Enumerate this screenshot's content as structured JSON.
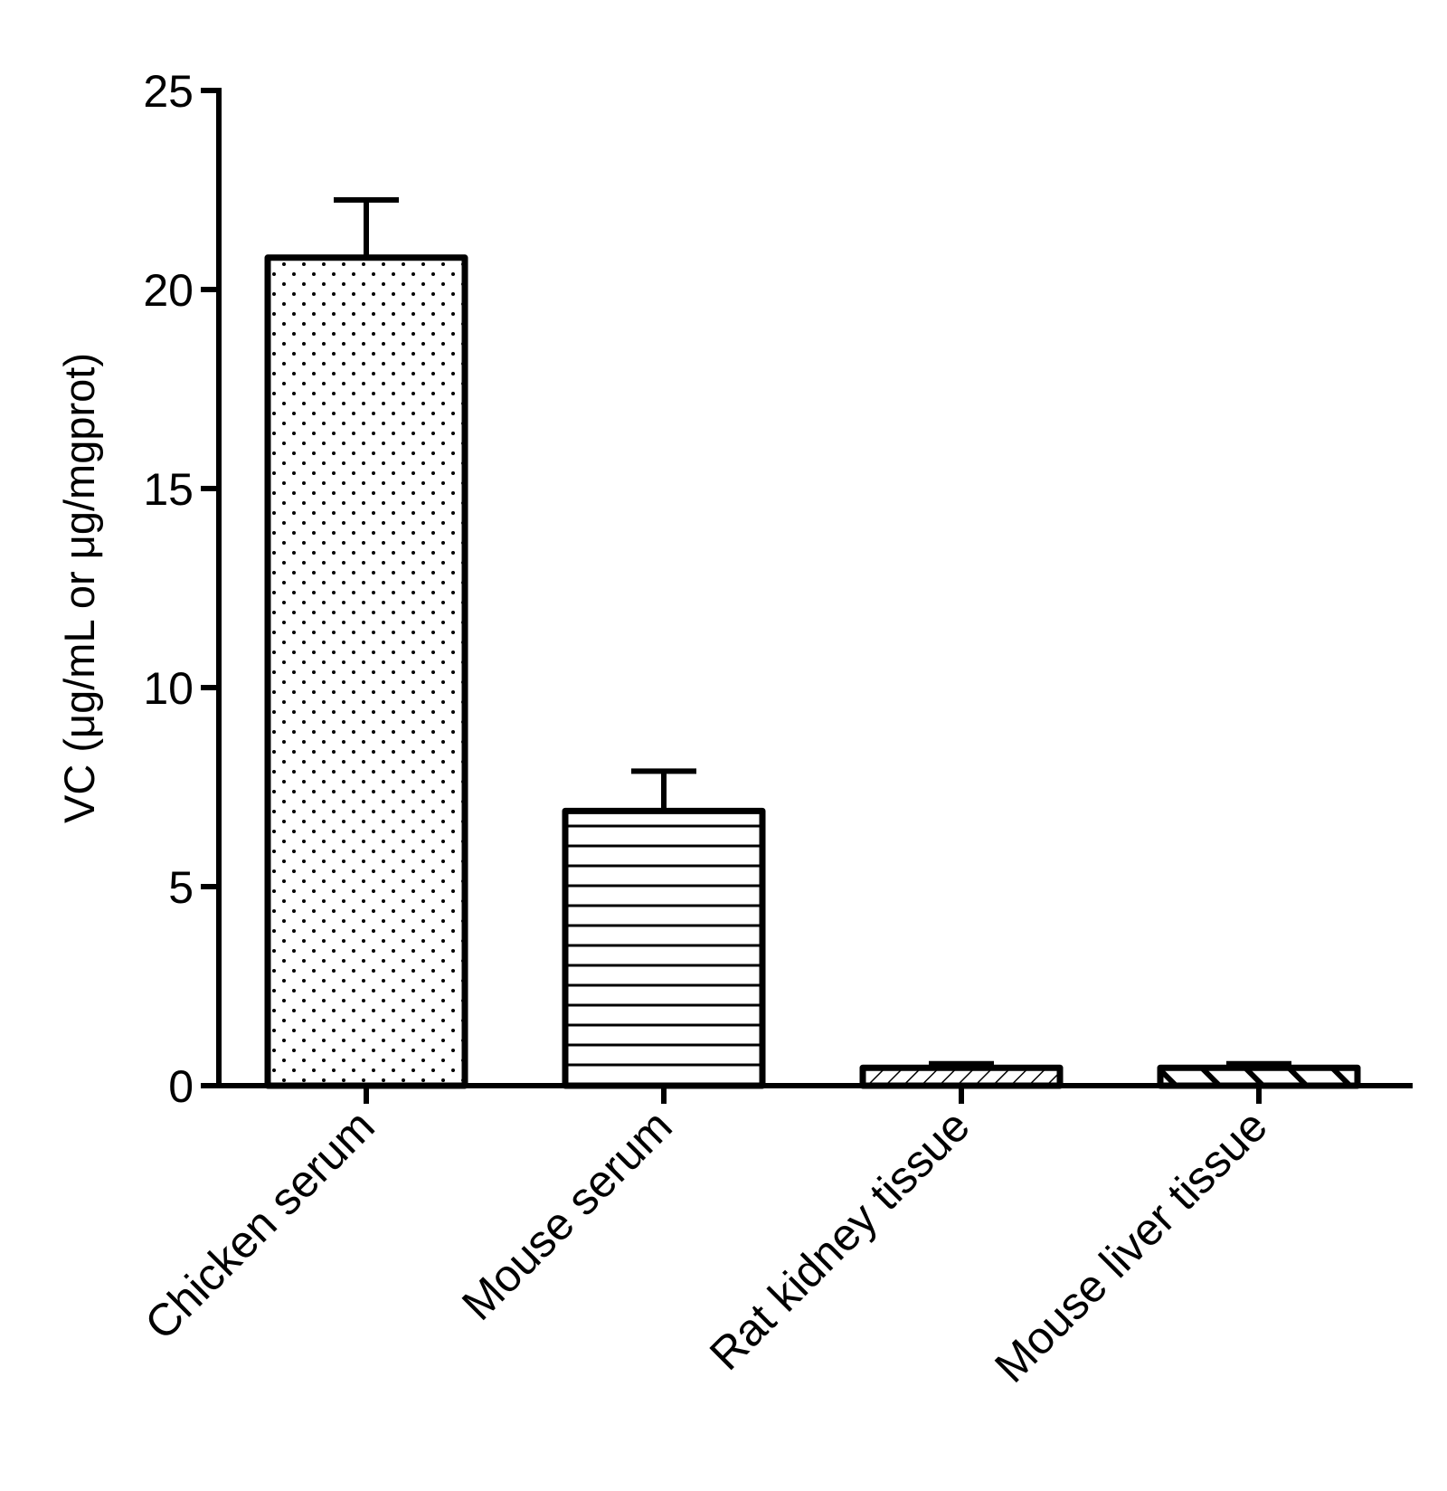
{
  "chart_data": {
    "type": "bar",
    "title": "",
    "xlabel": "",
    "ylabel": "VC (μg/mL or μg/mgprot)",
    "ylim": [
      0,
      25
    ],
    "yticks": [
      "0",
      "5",
      "10",
      "15",
      "20",
      "25"
    ],
    "categories": [
      "Chicken serum",
      "Mouse serum",
      "Rat kidney tissue",
      "Mouse liver tissue"
    ],
    "values": [
      20.8,
      6.9,
      0.45,
      0.45
    ],
    "errors": [
      1.45,
      1.0,
      0.1,
      0.1
    ],
    "patterns": [
      "dots",
      "horizontal-lines",
      "fine-diagonal-hatch",
      "bold-diagonal-hatch"
    ],
    "grid": false,
    "legend": "none",
    "colors": {
      "bar_fill": "#ffffff",
      "stroke": "#000000"
    }
  }
}
